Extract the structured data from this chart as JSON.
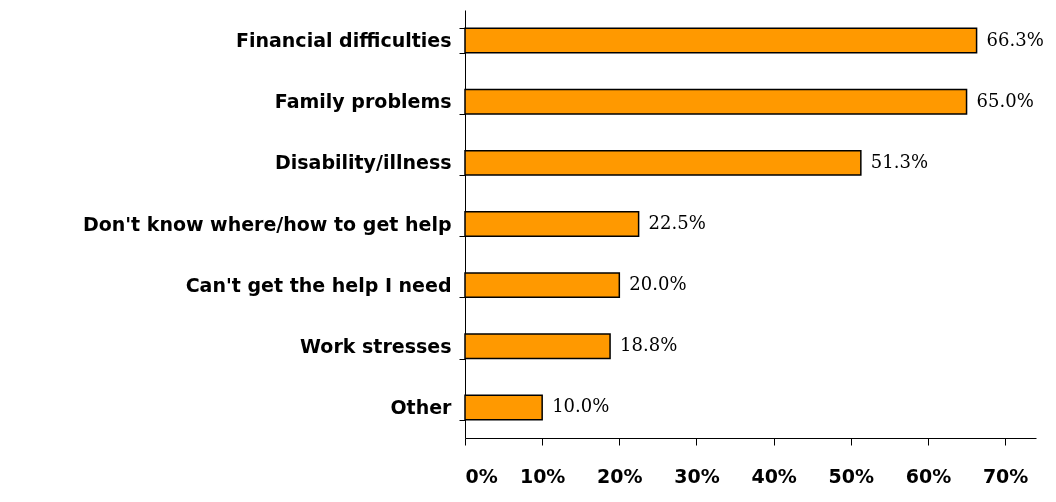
{
  "chart_data": {
    "type": "bar",
    "orientation": "horizontal",
    "categories": [
      "Financial difficulties",
      "Family problems",
      "Disability/illness",
      "Don't know where/how to get help",
      "Can't get the help I need",
      "Work stresses",
      "Other"
    ],
    "values": [
      66.3,
      65.0,
      51.3,
      22.5,
      20.0,
      18.8,
      10.0
    ],
    "value_labels": [
      "66.3%",
      "65.0%",
      "51.3%",
      "22.5%",
      "20.0%",
      "18.8%",
      "10.0%"
    ],
    "color": "#ff9900",
    "xlim": [
      0,
      74
    ],
    "xticks": [
      {
        "value": 0,
        "label": "0%"
      },
      {
        "value": 10,
        "label": "10%"
      },
      {
        "value": 20,
        "label": "20%"
      },
      {
        "value": 30,
        "label": "30%"
      },
      {
        "value": 40,
        "label": "40%"
      },
      {
        "value": 50,
        "label": "50%"
      },
      {
        "value": 60,
        "label": "60%"
      },
      {
        "value": 70,
        "label": "70%"
      }
    ],
    "grid": false
  }
}
